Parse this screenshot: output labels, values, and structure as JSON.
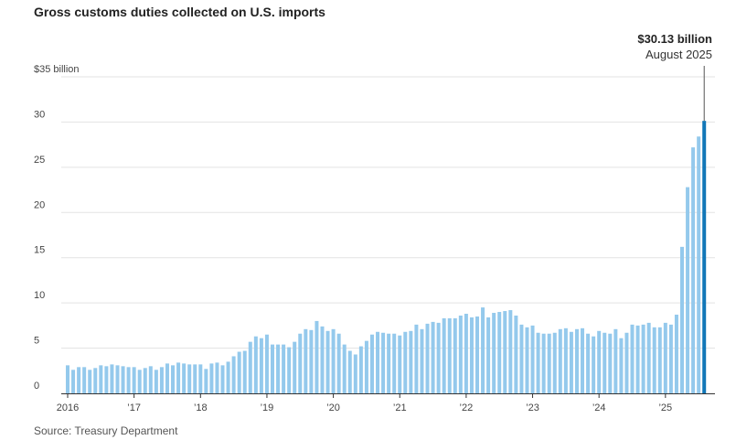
{
  "chart_data": {
    "type": "bar",
    "title": "Gross customs duties collected on U.S. imports",
    "source": "Source: Treasury Department",
    "y_unit_label": "$35 billion",
    "ylim": [
      0,
      35
    ],
    "y_ticks": [
      {
        "value": 0,
        "label": "0"
      },
      {
        "value": 5,
        "label": "5"
      },
      {
        "value": 10,
        "label": "10"
      },
      {
        "value": 15,
        "label": "15"
      },
      {
        "value": 20,
        "label": "20"
      },
      {
        "value": 25,
        "label": "25"
      },
      {
        "value": 30,
        "label": "30"
      },
      {
        "value": 35,
        "label": "$35 billion"
      }
    ],
    "x_ticks": [
      {
        "date": "2016-01",
        "label": "2016"
      },
      {
        "date": "2017-01",
        "label": "’17"
      },
      {
        "date": "2018-01",
        "label": "’18"
      },
      {
        "date": "2019-01",
        "label": "’19"
      },
      {
        "date": "2020-01",
        "label": "’20"
      },
      {
        "date": "2021-01",
        "label": "’21"
      },
      {
        "date": "2022-01",
        "label": "’22"
      },
      {
        "date": "2023-01",
        "label": "’23"
      },
      {
        "date": "2024-01",
        "label": "’24"
      },
      {
        "date": "2025-01",
        "label": "’25"
      }
    ],
    "grid": "horizontal",
    "bar_color": "#94c9ec",
    "highlight_color": "#1177b8",
    "annotation": {
      "value_label": "$30.13 billion",
      "date_label": "August 2025",
      "date": "2025-08"
    },
    "series": [
      {
        "start": "2016-01",
        "frequency": "monthly",
        "values": [
          3.1,
          2.6,
          2.9,
          2.9,
          2.6,
          2.8,
          3.1,
          3.0,
          3.2,
          3.1,
          3.0,
          2.9,
          2.9,
          2.6,
          2.8,
          3.0,
          2.6,
          2.9,
          3.3,
          3.1,
          3.4,
          3.3,
          3.2,
          3.2,
          3.2,
          2.7,
          3.3,
          3.4,
          3.1,
          3.5,
          4.1,
          4.6,
          4.7,
          5.7,
          6.3,
          6.1,
          6.5,
          5.4,
          5.4,
          5.4,
          5.1,
          5.7,
          6.6,
          7.1,
          7.0,
          8.0,
          7.4,
          6.9,
          7.1,
          6.6,
          5.4,
          4.7,
          4.3,
          5.2,
          5.8,
          6.5,
          6.8,
          6.7,
          6.6,
          6.6,
          6.4,
          6.8,
          6.9,
          7.6,
          7.1,
          7.7,
          7.9,
          7.8,
          8.3,
          8.3,
          8.3,
          8.6,
          8.8,
          8.4,
          8.5,
          9.5,
          8.4,
          8.9,
          9.0,
          9.1,
          9.2,
          8.6,
          7.6,
          7.3,
          7.5,
          6.7,
          6.6,
          6.6,
          6.7,
          7.1,
          7.2,
          6.8,
          7.1,
          7.2,
          6.6,
          6.3,
          6.9,
          6.7,
          6.6,
          7.1,
          6.1,
          6.7,
          7.6,
          7.5,
          7.6,
          7.8,
          7.3,
          7.3,
          7.8,
          7.6,
          8.7,
          16.2,
          22.8,
          27.2,
          28.4,
          30.13
        ]
      }
    ]
  }
}
